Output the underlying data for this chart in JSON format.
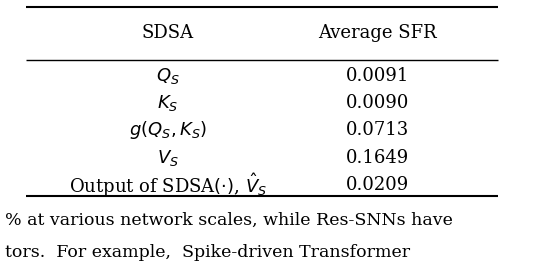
{
  "col_headers": [
    "SDSA",
    "Average SFR"
  ],
  "rows": [
    [
      "$Q_S$",
      "0.0091"
    ],
    [
      "$K_S$",
      "0.0090"
    ],
    [
      "$g(Q_S, K_S)$",
      "0.0713"
    ],
    [
      "$V_S$",
      "0.1649"
    ],
    [
      "Output of SDSA$(\\cdot)$, $\\hat{V}_S$",
      "0.0209"
    ]
  ],
  "background_color": "#ffffff",
  "text_color": "#000000",
  "header_fontsize": 13,
  "row_fontsize": 13,
  "footer_text": "% at various network scales, while Res-SNNs have",
  "footer_text2": "tors.  For example,  Spike-driven Transformer",
  "footer_fontsize": 12.5
}
